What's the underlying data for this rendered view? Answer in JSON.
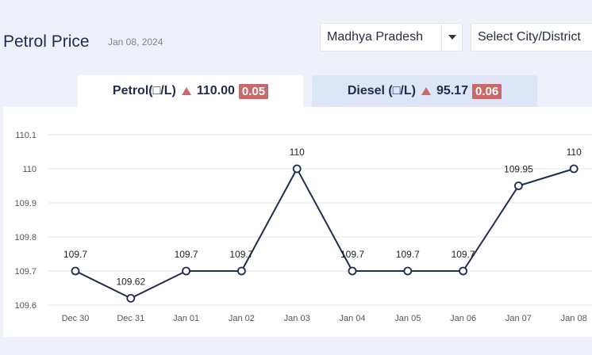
{
  "header": {
    "title": "Petrol Price",
    "date": "Jan 08, 2024",
    "state_select": "Madhya Pradesh",
    "city_select": "Select City/District"
  },
  "tabs": [
    {
      "label": "Petrol(□/L)",
      "price": "110.00",
      "change": "0.05",
      "active": true
    },
    {
      "label": "Diesel (□/L)",
      "price": "95.17",
      "change": "0.06",
      "active": false
    }
  ],
  "colors": {
    "line": "#1c2d4f",
    "badge": "#c9696a",
    "grid": "#e4e6ea"
  },
  "chart_data": {
    "type": "line",
    "categories": [
      "Dec 30",
      "Dec 31",
      "Jan 01",
      "Jan 02",
      "Jan 03",
      "Jan 04",
      "Jan 05",
      "Jan 06",
      "Jan 07",
      "Jan 08"
    ],
    "values": [
      109.7,
      109.62,
      109.7,
      109.7,
      110,
      109.7,
      109.7,
      109.7,
      109.95,
      110
    ],
    "data_labels": [
      "109.7",
      "109.62",
      "109.7",
      "109.7",
      "110",
      "109.7",
      "109.7",
      "109.7",
      "109.95",
      "110"
    ],
    "yticks": [
      "109.6",
      "109.7",
      "109.8",
      "109.9",
      "110",
      "110.1"
    ],
    "ylim": [
      109.6,
      110.1
    ],
    "grid": true
  }
}
